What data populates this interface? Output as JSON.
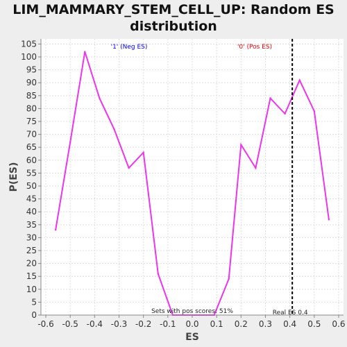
{
  "chart_data": {
    "type": "line",
    "title_line1": "LIM_MAMMARY_STEM_CELL_UP: Random ES",
    "title_line2": "distribution",
    "xlabel": "ES",
    "ylabel": "P(ES)",
    "xlim": [
      -0.62,
      0.62
    ],
    "ylim": [
      0,
      107
    ],
    "xticks": [
      -0.6,
      -0.5,
      -0.4,
      -0.3,
      -0.2,
      -0.1,
      0.0,
      0.1,
      0.2,
      0.3,
      0.4,
      0.5,
      0.6
    ],
    "xtick_labels": [
      "-0.6",
      "-0.5",
      "-0.4",
      "-0.3",
      "-0.2",
      "-0.1",
      "0.0",
      "0.1",
      "0.2",
      "0.3",
      "0.4",
      "0.5",
      "0.6"
    ],
    "yticks": [
      0,
      5,
      10,
      15,
      20,
      25,
      30,
      35,
      40,
      45,
      50,
      55,
      60,
      65,
      70,
      75,
      80,
      85,
      90,
      95,
      100,
      105
    ],
    "grid": true,
    "series": [
      {
        "color": "#ee33ee",
        "x": [
          -0.56,
          -0.5,
          -0.44,
          -0.38,
          -0.32,
          -0.26,
          -0.2,
          -0.14,
          -0.08,
          -0.02,
          0.03,
          0.09,
          0.15,
          0.2,
          0.26,
          0.32,
          0.38,
          0.44,
          0.5,
          0.56
        ],
        "y": [
          33,
          67,
          102,
          84,
          72,
          57,
          63,
          16,
          0,
          0,
          0,
          0,
          14,
          66,
          57,
          84,
          78,
          91,
          79,
          37
        ]
      }
    ],
    "marker_line": {
      "x": 0.41,
      "label": "Real ES 0.4"
    },
    "legend": [
      {
        "label": "'1' (Neg ES)",
        "color": "#0000ee"
      },
      {
        "label": "'0' (Pos ES)",
        "color": "#ee0000"
      }
    ],
    "annotation": "Sets with pos scores: 51%"
  }
}
